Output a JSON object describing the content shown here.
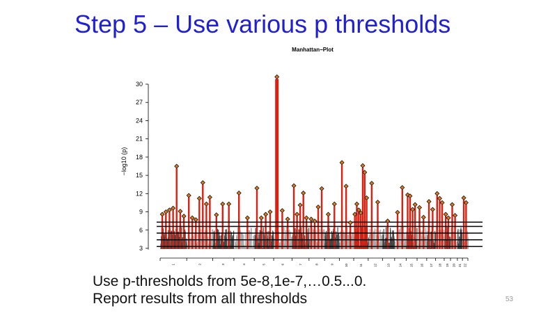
{
  "slide": {
    "title": "Step 5 – Use various p thresholds",
    "bullets": [
      "Use p-thresholds from 5e-8,1e-7,…0.5...0.",
      "Report results from all thresholds"
    ],
    "slide_number": "53"
  },
  "colors": {
    "title": "#1f1fd6",
    "bar_red": "#dd1f10",
    "marker_fill": "#d9781f",
    "gray_dark": "#454545",
    "gray_light": "#a8a8a8",
    "threshold_line": "#000000"
  },
  "chart_data": {
    "type": "scatter",
    "title": "Manhattan−Plot",
    "xlabel": "",
    "ylabel": "−log10 (p)",
    "ylim": [
      2.5,
      31
    ],
    "yticks": [
      3,
      6,
      9,
      12,
      15,
      18,
      21,
      24,
      27,
      30
    ],
    "ytick_labels": [
      "3",
      "6",
      "9",
      "12",
      "15",
      "18",
      "21",
      "24",
      "27",
      "30"
    ],
    "thresholds": [
      3.3,
      4.4,
      5.5,
      6.6,
      7.3
    ],
    "chromosomes": [
      "1",
      "2",
      "3",
      "4",
      "5",
      "6",
      "7",
      "8",
      "9",
      "10",
      "11",
      "12",
      "13",
      "14",
      "15",
      "16",
      "17",
      "18",
      "19",
      "20",
      "21",
      "22"
    ],
    "peaks": [
      {
        "chr": 1,
        "y": 8.6
      },
      {
        "chr": 1,
        "y": 9.0
      },
      {
        "chr": 1,
        "y": 9.3
      },
      {
        "chr": 1,
        "y": 9.6
      },
      {
        "chr": 1,
        "y": 16.5
      },
      {
        "chr": 1,
        "y": 9.1
      },
      {
        "chr": 1,
        "y": 8.3
      },
      {
        "chr": 2,
        "y": 11.7
      },
      {
        "chr": 2,
        "y": 8.0
      },
      {
        "chr": 2,
        "y": 7.7
      },
      {
        "chr": 2,
        "y": 11.2
      },
      {
        "chr": 2,
        "y": 13.8
      },
      {
        "chr": 2,
        "y": 10.3
      },
      {
        "chr": 2,
        "y": 11.4
      },
      {
        "chr": 3,
        "y": 8.5
      },
      {
        "chr": 3,
        "y": 10.3
      },
      {
        "chr": 3,
        "y": 10.3
      },
      {
        "chr": 4,
        "y": 12.1
      },
      {
        "chr": 4,
        "y": 8.0
      },
      {
        "chr": 5,
        "y": 12.9
      },
      {
        "chr": 5,
        "y": 8.0
      },
      {
        "chr": 5,
        "y": 8.6
      },
      {
        "chr": 5,
        "y": 9.0
      },
      {
        "chr": 6,
        "y": 31.2
      },
      {
        "chr": 6,
        "y": 9.2
      },
      {
        "chr": 6,
        "y": 7.8
      },
      {
        "chr": 7,
        "y": 13.3
      },
      {
        "chr": 7,
        "y": 8.6
      },
      {
        "chr": 7,
        "y": 10.1
      },
      {
        "chr": 7,
        "y": 12.1
      },
      {
        "chr": 7,
        "y": 8.0
      },
      {
        "chr": 8,
        "y": 7.8
      },
      {
        "chr": 8,
        "y": 7.5
      },
      {
        "chr": 8,
        "y": 9.8
      },
      {
        "chr": 8,
        "y": 12.8
      },
      {
        "chr": 9,
        "y": 8.6
      },
      {
        "chr": 9,
        "y": 10.3
      },
      {
        "chr": 10,
        "y": 17.1
      },
      {
        "chr": 10,
        "y": 13.2
      },
      {
        "chr": 10,
        "y": 7.2
      },
      {
        "chr": 11,
        "y": 8.6
      },
      {
        "chr": 11,
        "y": 10.3
      },
      {
        "chr": 11,
        "y": 9.3
      },
      {
        "chr": 11,
        "y": 8.8
      },
      {
        "chr": 11,
        "y": 16.6
      },
      {
        "chr": 11,
        "y": 15.5
      },
      {
        "chr": 11,
        "y": 11.3
      },
      {
        "chr": 12,
        "y": 13.7
      },
      {
        "chr": 12,
        "y": 10.6
      },
      {
        "chr": 13,
        "y": 7.5
      },
      {
        "chr": 14,
        "y": 8.9
      },
      {
        "chr": 14,
        "y": 13.0
      },
      {
        "chr": 15,
        "y": 11.8
      },
      {
        "chr": 15,
        "y": 11.6
      },
      {
        "chr": 15,
        "y": 9.4
      },
      {
        "chr": 15,
        "y": 10.2
      },
      {
        "chr": 16,
        "y": 9.7
      },
      {
        "chr": 16,
        "y": 8.1
      },
      {
        "chr": 17,
        "y": 10.7
      },
      {
        "chr": 17,
        "y": 9.4
      },
      {
        "chr": 18,
        "y": 12.0
      },
      {
        "chr": 18,
        "y": 11.2
      },
      {
        "chr": 18,
        "y": 10.5
      },
      {
        "chr": 19,
        "y": 8.6
      },
      {
        "chr": 19,
        "y": 8.0
      },
      {
        "chr": 20,
        "y": 10.2
      },
      {
        "chr": 20,
        "y": 8.4
      },
      {
        "chr": 22,
        "y": 11.3
      },
      {
        "chr": 22,
        "y": 10.5
      }
    ],
    "grid": false,
    "legend": "none"
  }
}
